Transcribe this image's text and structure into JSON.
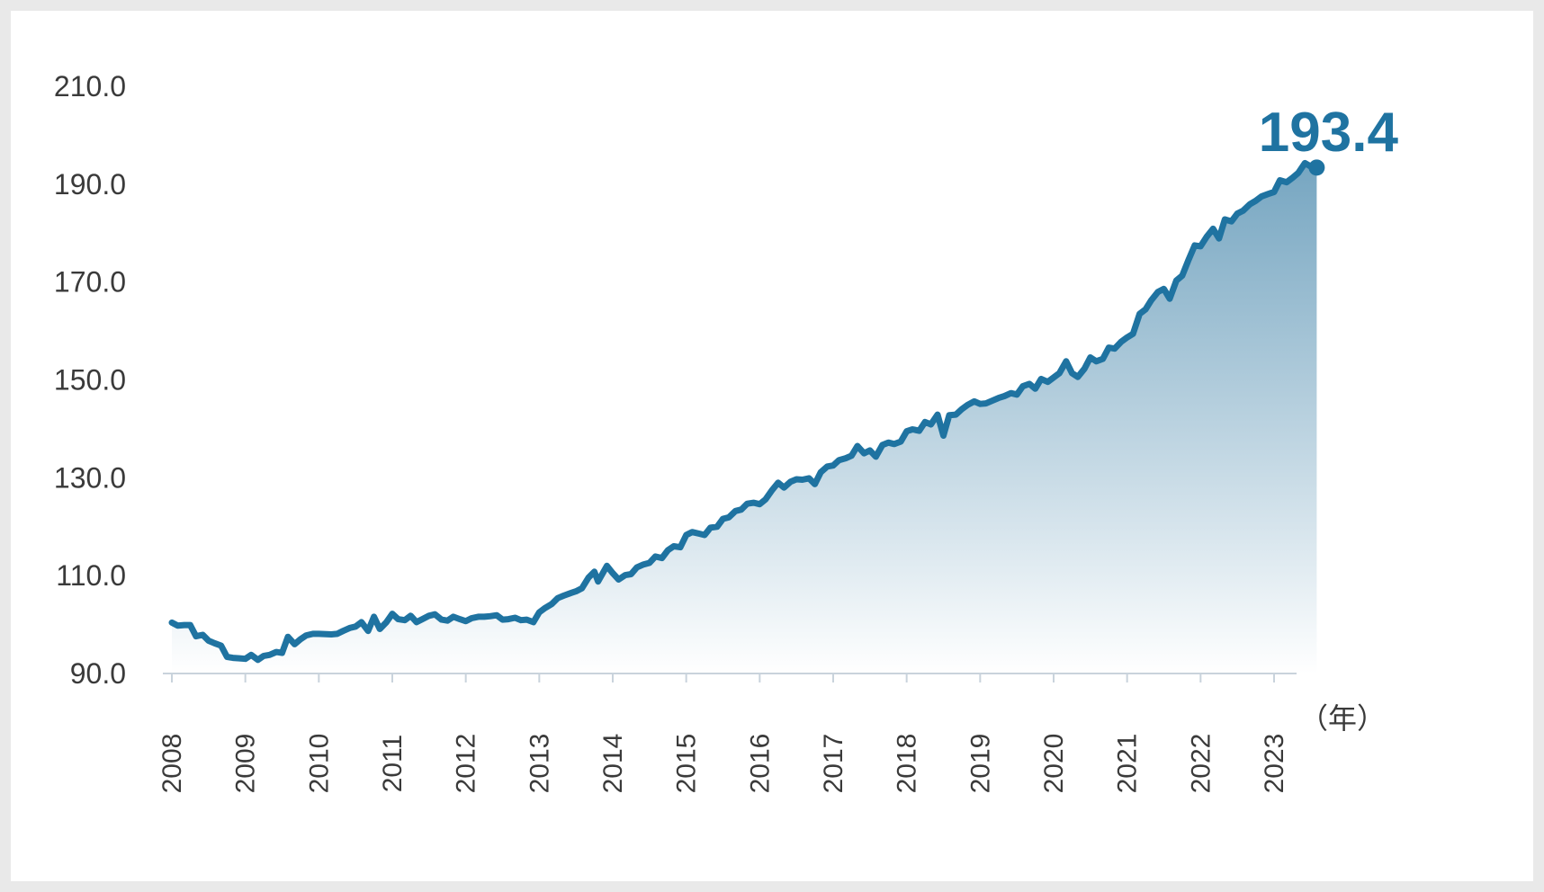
{
  "colors": {
    "line": "#1f73a1",
    "fill_top": "#5e96b6",
    "fill_bottom": "#ffffff",
    "axis": "#c9d3dc",
    "text": "#3a3a3a"
  },
  "chart_data": {
    "type": "area",
    "title": "",
    "xlabel": "",
    "ylabel": "",
    "x_unit_label": "（年）",
    "ylim": [
      90,
      210
    ],
    "yticks": [
      "210.0",
      "190.0",
      "170.0",
      "150.0",
      "130.0",
      "110.0",
      "90.0"
    ],
    "ytick_values": [
      210,
      190,
      170,
      150,
      130,
      110,
      90
    ],
    "xticks": [
      "2008",
      "2009",
      "2010",
      "2011",
      "2012",
      "2013",
      "2014",
      "2015",
      "2016",
      "2017",
      "2018",
      "2019",
      "2020",
      "2021",
      "2022",
      "2023"
    ],
    "xtick_values": [
      2008,
      2009,
      2010,
      2011,
      2012,
      2013,
      2014,
      2015,
      2016,
      2017,
      2018,
      2019,
      2020,
      2021,
      2022,
      2023
    ],
    "end_label": "193.4",
    "series": [
      {
        "points": [
          [
            2008.0,
            100.4
          ],
          [
            2008.08,
            99.8
          ],
          [
            2008.17,
            99.9
          ],
          [
            2008.25,
            99.9
          ],
          [
            2008.33,
            97.6
          ],
          [
            2008.42,
            97.9
          ],
          [
            2008.5,
            96.7
          ],
          [
            2008.58,
            96.2
          ],
          [
            2008.67,
            95.7
          ],
          [
            2008.75,
            93.4
          ],
          [
            2008.83,
            93.2
          ],
          [
            2008.92,
            93.1
          ],
          [
            2009.0,
            93.0
          ],
          [
            2009.08,
            93.8
          ],
          [
            2009.17,
            92.8
          ],
          [
            2009.25,
            93.6
          ],
          [
            2009.33,
            93.8
          ],
          [
            2009.42,
            94.4
          ],
          [
            2009.5,
            94.2
          ],
          [
            2009.58,
            97.5
          ],
          [
            2009.67,
            96.0
          ],
          [
            2009.75,
            97.0
          ],
          [
            2009.83,
            97.8
          ],
          [
            2009.92,
            98.1
          ],
          [
            2010.0,
            98.1
          ],
          [
            2010.17,
            98.0
          ],
          [
            2010.25,
            98.1
          ],
          [
            2010.33,
            98.7
          ],
          [
            2010.42,
            99.3
          ],
          [
            2010.5,
            99.6
          ],
          [
            2010.58,
            100.5
          ],
          [
            2010.67,
            98.7
          ],
          [
            2010.75,
            101.6
          ],
          [
            2010.83,
            99.1
          ],
          [
            2010.92,
            100.5
          ],
          [
            2011.0,
            102.2
          ],
          [
            2011.08,
            101.1
          ],
          [
            2011.17,
            100.9
          ],
          [
            2011.25,
            101.8
          ],
          [
            2011.33,
            100.5
          ],
          [
            2011.42,
            101.2
          ],
          [
            2011.5,
            101.8
          ],
          [
            2011.58,
            102.1
          ],
          [
            2011.67,
            101.0
          ],
          [
            2011.75,
            100.8
          ],
          [
            2011.83,
            101.6
          ],
          [
            2011.92,
            101.1
          ],
          [
            2012.0,
            100.7
          ],
          [
            2012.08,
            101.3
          ],
          [
            2012.17,
            101.6
          ],
          [
            2012.25,
            101.6
          ],
          [
            2012.33,
            101.7
          ],
          [
            2012.42,
            101.9
          ],
          [
            2012.5,
            101.0
          ],
          [
            2012.58,
            101.1
          ],
          [
            2012.67,
            101.4
          ],
          [
            2012.75,
            100.9
          ],
          [
            2012.83,
            101.0
          ],
          [
            2012.92,
            100.5
          ],
          [
            2013.0,
            102.5
          ],
          [
            2013.08,
            103.4
          ],
          [
            2013.17,
            104.2
          ],
          [
            2013.25,
            105.4
          ],
          [
            2013.33,
            105.9
          ],
          [
            2013.42,
            106.4
          ],
          [
            2013.5,
            106.8
          ],
          [
            2013.58,
            107.4
          ],
          [
            2013.67,
            109.6
          ],
          [
            2013.75,
            110.8
          ],
          [
            2013.8,
            108.8
          ],
          [
            2013.92,
            112.0
          ],
          [
            2014.0,
            110.5
          ],
          [
            2014.08,
            109.2
          ],
          [
            2014.17,
            110.1
          ],
          [
            2014.25,
            110.3
          ],
          [
            2014.33,
            111.7
          ],
          [
            2014.42,
            112.3
          ],
          [
            2014.5,
            112.6
          ],
          [
            2014.58,
            113.9
          ],
          [
            2014.67,
            113.6
          ],
          [
            2014.75,
            115.2
          ],
          [
            2014.83,
            116.0
          ],
          [
            2014.92,
            115.8
          ],
          [
            2015.0,
            118.3
          ],
          [
            2015.08,
            118.9
          ],
          [
            2015.17,
            118.6
          ],
          [
            2015.25,
            118.3
          ],
          [
            2015.33,
            119.8
          ],
          [
            2015.42,
            120.0
          ],
          [
            2015.5,
            121.6
          ],
          [
            2015.58,
            121.9
          ],
          [
            2015.67,
            123.2
          ],
          [
            2015.75,
            123.5
          ],
          [
            2015.83,
            124.7
          ],
          [
            2015.92,
            124.9
          ],
          [
            2016.0,
            124.6
          ],
          [
            2016.08,
            125.6
          ],
          [
            2016.17,
            127.5
          ],
          [
            2016.25,
            129.0
          ],
          [
            2016.33,
            128.0
          ],
          [
            2016.42,
            129.2
          ],
          [
            2016.5,
            129.7
          ],
          [
            2016.58,
            129.6
          ],
          [
            2016.67,
            129.9
          ],
          [
            2016.75,
            128.7
          ],
          [
            2016.83,
            131.1
          ],
          [
            2016.92,
            132.3
          ],
          [
            2017.0,
            132.5
          ],
          [
            2017.08,
            133.6
          ],
          [
            2017.17,
            134.0
          ],
          [
            2017.25,
            134.5
          ],
          [
            2017.33,
            136.5
          ],
          [
            2017.42,
            135.0
          ],
          [
            2017.5,
            135.6
          ],
          [
            2017.58,
            134.3
          ],
          [
            2017.67,
            136.7
          ],
          [
            2017.75,
            137.2
          ],
          [
            2017.83,
            136.9
          ],
          [
            2017.92,
            137.4
          ],
          [
            2018.0,
            139.5
          ],
          [
            2018.08,
            139.9
          ],
          [
            2018.17,
            139.6
          ],
          [
            2018.25,
            141.4
          ],
          [
            2018.33,
            140.9
          ],
          [
            2018.42,
            142.9
          ],
          [
            2018.5,
            138.6
          ],
          [
            2018.58,
            142.8
          ],
          [
            2018.67,
            142.9
          ],
          [
            2018.75,
            144.0
          ],
          [
            2018.83,
            144.9
          ],
          [
            2018.92,
            145.6
          ],
          [
            2019.0,
            145.1
          ],
          [
            2019.08,
            145.2
          ],
          [
            2019.17,
            145.8
          ],
          [
            2019.25,
            146.3
          ],
          [
            2019.33,
            146.7
          ],
          [
            2019.42,
            147.3
          ],
          [
            2019.5,
            147.0
          ],
          [
            2019.58,
            148.7
          ],
          [
            2019.67,
            149.2
          ],
          [
            2019.75,
            148.2
          ],
          [
            2019.83,
            150.2
          ],
          [
            2019.92,
            149.6
          ],
          [
            2020.0,
            150.5
          ],
          [
            2020.08,
            151.4
          ],
          [
            2020.17,
            153.8
          ],
          [
            2020.25,
            151.4
          ],
          [
            2020.33,
            150.6
          ],
          [
            2020.42,
            152.3
          ],
          [
            2020.5,
            154.6
          ],
          [
            2020.58,
            153.8
          ],
          [
            2020.67,
            154.3
          ],
          [
            2020.75,
            156.6
          ],
          [
            2020.83,
            156.4
          ],
          [
            2020.92,
            157.8
          ],
          [
            2021.0,
            158.7
          ],
          [
            2021.08,
            159.4
          ],
          [
            2021.17,
            163.5
          ],
          [
            2021.25,
            164.4
          ],
          [
            2021.33,
            166.3
          ],
          [
            2021.42,
            168.0
          ],
          [
            2021.5,
            168.6
          ],
          [
            2021.58,
            166.6
          ],
          [
            2021.67,
            170.3
          ],
          [
            2021.75,
            171.3
          ],
          [
            2021.83,
            174.3
          ],
          [
            2021.92,
            177.5
          ],
          [
            2022.0,
            177.3
          ],
          [
            2022.08,
            179.2
          ],
          [
            2022.17,
            180.9
          ],
          [
            2022.25,
            178.9
          ],
          [
            2022.33,
            182.8
          ],
          [
            2022.42,
            182.4
          ],
          [
            2022.5,
            184.0
          ],
          [
            2022.58,
            184.6
          ],
          [
            2022.67,
            185.9
          ],
          [
            2022.75,
            186.6
          ],
          [
            2022.83,
            187.5
          ],
          [
            2022.92,
            188.0
          ],
          [
            2023.0,
            188.4
          ],
          [
            2023.08,
            190.8
          ],
          [
            2023.17,
            190.4
          ],
          [
            2023.25,
            191.3
          ],
          [
            2023.33,
            192.3
          ],
          [
            2023.42,
            194.3
          ],
          [
            2023.5,
            193.6
          ],
          [
            2023.58,
            193.4
          ]
        ]
      }
    ]
  }
}
